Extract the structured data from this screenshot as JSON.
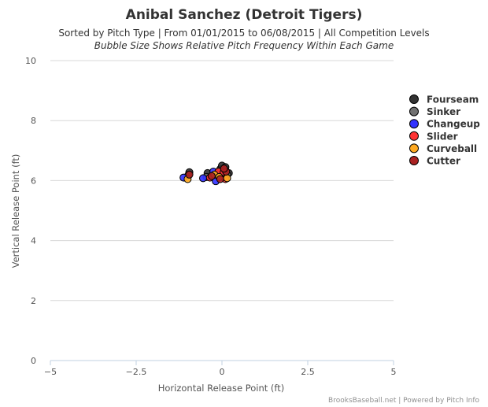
{
  "chart_data": {
    "type": "scatter",
    "title": "Anibal Sanchez (Detroit Tigers)",
    "subtitle_line1": "Sorted by Pitch Type | From 01/01/2015 to 06/08/2015 | All Competition Levels",
    "subtitle_line2": "Bubble Size Shows Relative Pitch Frequency Within Each Game",
    "xlabel": "Horizontal Release Point (ft)",
    "ylabel": "Vertical Release Point (ft)",
    "xlim": [
      -5,
      5
    ],
    "ylim": [
      0,
      10
    ],
    "x_ticks": [
      -5,
      -2.5,
      0,
      2.5,
      5
    ],
    "x_tick_labels": [
      "−5",
      "−2.5",
      "0",
      "2.5",
      "5"
    ],
    "y_ticks": [
      0,
      2,
      4,
      6,
      8,
      10
    ],
    "y_tick_labels": [
      "0",
      "2",
      "4",
      "6",
      "8",
      "10"
    ],
    "grid": "horizontal",
    "legend_position": "right",
    "credits": "BrooksBaseball.net | Powered by Pitch Info",
    "series": [
      {
        "name": "Fourseam",
        "color": "#333333",
        "points": [
          [
            -0.95,
            6.28
          ],
          [
            -0.42,
            6.25
          ],
          [
            -0.05,
            6.38
          ],
          [
            0.0,
            6.5
          ],
          [
            0.1,
            6.45
          ],
          [
            0.2,
            6.25
          ],
          [
            0.05,
            6.15
          ]
        ]
      },
      {
        "name": "Sinker",
        "color": "#707070",
        "points": [
          [
            -0.98,
            6.18
          ],
          [
            -0.45,
            6.12
          ],
          [
            0.08,
            6.35
          ],
          [
            0.15,
            6.2
          ]
        ]
      },
      {
        "name": "Changeup",
        "color": "#3333ff",
        "points": [
          [
            -1.12,
            6.1
          ],
          [
            -0.55,
            6.08
          ],
          [
            -0.25,
            6.3
          ],
          [
            -0.18,
            5.98
          ],
          [
            0.02,
            6.22
          ]
        ]
      },
      {
        "name": "Slider",
        "color": "#ff3333",
        "points": [
          [
            -0.35,
            6.1
          ],
          [
            -0.1,
            6.3
          ],
          [
            0.05,
            6.28
          ],
          [
            0.1,
            6.05
          ]
        ]
      },
      {
        "name": "Curveball",
        "color": "#ffaa22",
        "points": [
          [
            -1.0,
            6.05
          ],
          [
            -0.22,
            6.2
          ],
          [
            -0.08,
            6.12
          ],
          [
            0.15,
            6.08
          ]
        ]
      },
      {
        "name": "Cutter",
        "color": "#aa2222",
        "points": [
          [
            -0.95,
            6.2
          ],
          [
            -0.3,
            6.15
          ],
          [
            -0.05,
            6.05
          ],
          [
            0.12,
            6.3
          ],
          [
            0.06,
            6.4
          ]
        ]
      }
    ]
  }
}
